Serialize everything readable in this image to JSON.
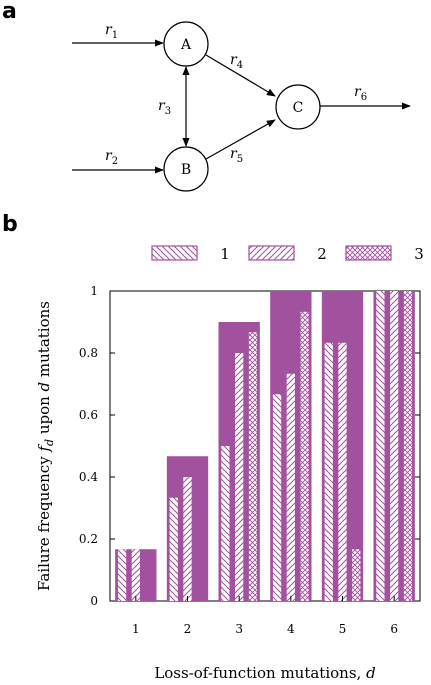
{
  "panel_a": {
    "label": "a",
    "nodes": [
      {
        "id": "A",
        "label": "A"
      },
      {
        "id": "B",
        "label": "B"
      },
      {
        "id": "C",
        "label": "C"
      }
    ],
    "edges": [
      {
        "name": "r",
        "sub": "1"
      },
      {
        "name": "r",
        "sub": "2"
      },
      {
        "name": "r",
        "sub": "3"
      },
      {
        "name": "r",
        "sub": "4"
      },
      {
        "name": "r",
        "sub": "5"
      },
      {
        "name": "r",
        "sub": "6"
      }
    ]
  },
  "panel_b": {
    "label": "b"
  },
  "chart_data": {
    "type": "bar",
    "title": "",
    "xlabel": "Loss-of-function mutations, d",
    "ylabel": "Failure frequency f_d upon d mutations",
    "ylabel_parts": {
      "pre": "Failure frequency ",
      "var": "f",
      "sub": "d",
      "post": " upon ",
      "var2": "d",
      "post2": " mutations"
    },
    "xlabel_parts": {
      "pre": "Loss-of-function mutations, ",
      "var": "d"
    },
    "categories": [
      "1",
      "2",
      "3",
      "4",
      "5",
      "6"
    ],
    "ylim": [
      0,
      1
    ],
    "yticks": [
      "0",
      "0.2",
      "0.4",
      "0.6",
      "0.8",
      "1"
    ],
    "ytick_values": [
      0,
      0.2,
      0.4,
      0.6,
      0.8,
      1
    ],
    "legend": {
      "placement": "top",
      "entries": [
        "1",
        "2",
        "3"
      ]
    },
    "grid": false,
    "total_values": [
      0.167,
      0.467,
      0.9,
      1.0,
      1.0,
      1.0
    ],
    "series": [
      {
        "name": "1",
        "pattern": "backslash",
        "values": [
          0.167,
          0.333,
          0.5,
          0.667,
          0.833,
          1.0
        ]
      },
      {
        "name": "2",
        "pattern": "slash",
        "values": [
          0.167,
          0.4,
          0.8,
          0.733,
          0.833,
          1.0
        ]
      },
      {
        "name": "3",
        "pattern": "crosshatch",
        "values": [
          0.0,
          0.0,
          0.867,
          0.933,
          0.167,
          1.0
        ]
      }
    ],
    "colors": {
      "fill": "#a2519e",
      "hatch": "#a2519e"
    }
  }
}
